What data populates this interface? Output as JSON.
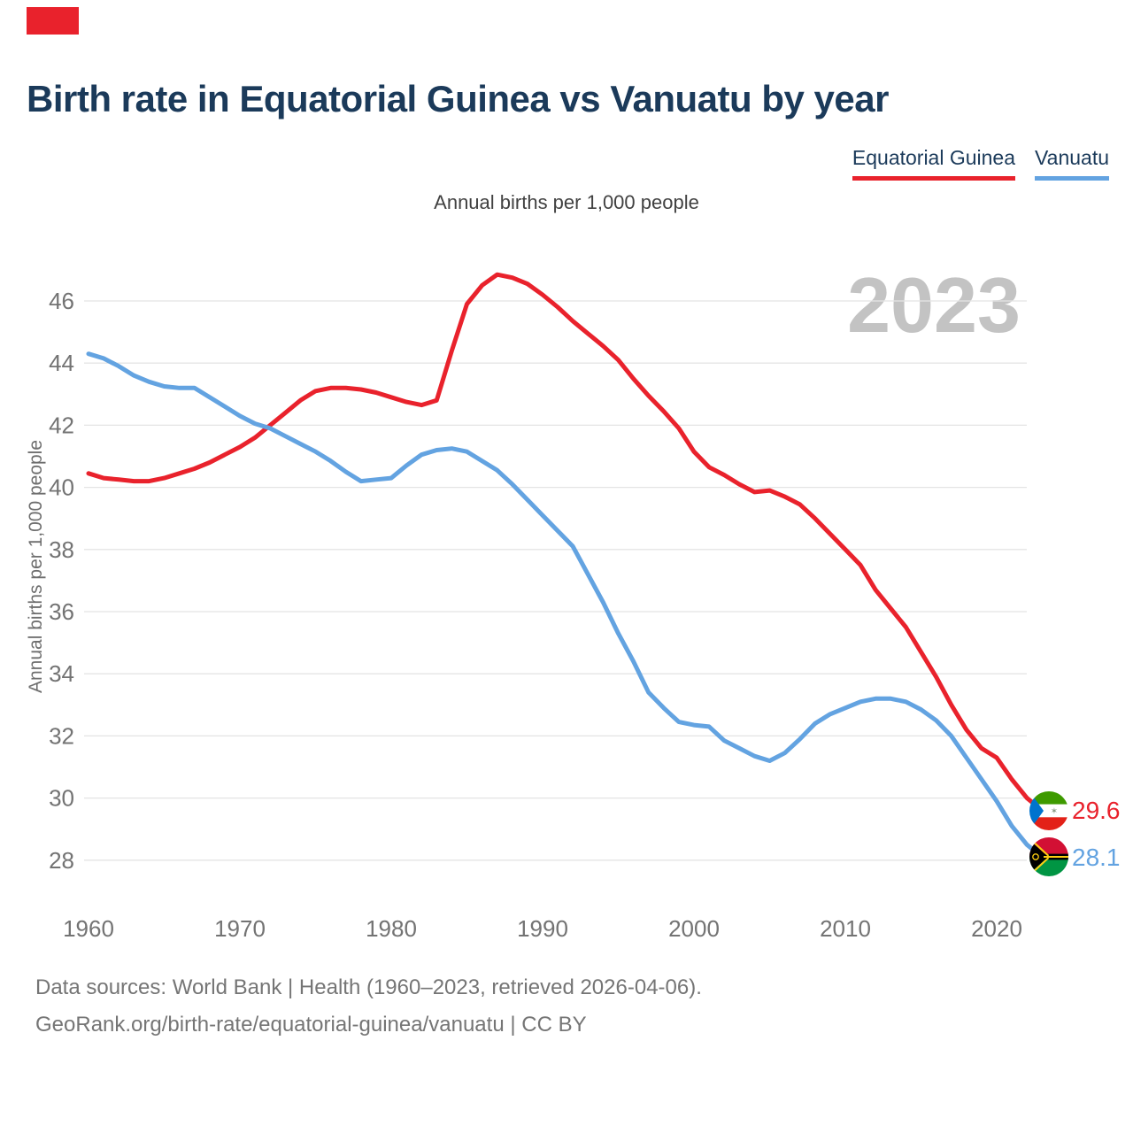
{
  "page": {
    "title": "Birth rate in Equatorial Guinea vs Vanuatu by year",
    "subtitle": "Annual births per 1,000 people",
    "watermark": "2023",
    "footer_line1": "Data sources: World Bank | Health (1960–2023, retrieved 2026-04-06).",
    "footer_line2": "GeoRank.org/birth-rate/equatorial-guinea/vanuatu | CC BY"
  },
  "colors": {
    "accent_red": "#e9222c",
    "line_red": "#e9222c",
    "line_blue": "#63a3e1",
    "title_navy": "#1b3a5a",
    "tick_gray": "#737373",
    "grid_gray": "#e4e4e4",
    "footer_gray": "#757575",
    "watermark_gray": "#c3c3c3"
  },
  "legend": [
    {
      "label": "Equatorial Guinea",
      "color": "#e9222c"
    },
    {
      "label": "Vanuatu",
      "color": "#63a3e1"
    }
  ],
  "end_labels": [
    {
      "series": "Equatorial Guinea",
      "value": "29.6",
      "color": "#e9222c",
      "flag": "equatorial-guinea-flag"
    },
    {
      "series": "Vanuatu",
      "value": "28.1",
      "color": "#63a3e1",
      "flag": "vanuatu-flag"
    }
  ],
  "chart_data": {
    "type": "line",
    "title": "Birth rate in Equatorial Guinea vs Vanuatu by year",
    "subtitle": "Annual births per 1,000 people",
    "xlabel": "",
    "ylabel": "Annual births per 1,000 people",
    "grid": "horizontal",
    "legend_position": "top-right",
    "ylim": [
      27,
      47.5
    ],
    "xticks": [
      1960,
      1970,
      1980,
      1990,
      2000,
      2010,
      2020
    ],
    "yticks": [
      28,
      30,
      32,
      34,
      36,
      38,
      40,
      42,
      44,
      46
    ],
    "x": [
      1960,
      1961,
      1962,
      1963,
      1964,
      1965,
      1966,
      1967,
      1968,
      1969,
      1970,
      1971,
      1972,
      1973,
      1974,
      1975,
      1976,
      1977,
      1978,
      1979,
      1980,
      1981,
      1982,
      1983,
      1984,
      1985,
      1986,
      1987,
      1988,
      1989,
      1990,
      1991,
      1992,
      1993,
      1994,
      1995,
      1996,
      1997,
      1998,
      1999,
      2000,
      2001,
      2002,
      2003,
      2004,
      2005,
      2006,
      2007,
      2008,
      2009,
      2010,
      2011,
      2012,
      2013,
      2014,
      2015,
      2016,
      2017,
      2018,
      2019,
      2020,
      2021,
      2022,
      2023
    ],
    "series": [
      {
        "name": "Equatorial Guinea",
        "color": "#e9222c",
        "values": [
          40.45,
          40.3,
          40.25,
          40.2,
          40.2,
          40.3,
          40.45,
          40.6,
          40.8,
          41.05,
          41.3,
          41.6,
          42.0,
          42.4,
          42.8,
          43.1,
          43.2,
          43.2,
          43.15,
          43.05,
          42.9,
          42.75,
          42.65,
          42.8,
          44.4,
          45.9,
          46.5,
          46.85,
          46.75,
          46.55,
          46.2,
          45.8,
          45.35,
          44.95,
          44.55,
          44.1,
          43.5,
          42.95,
          42.45,
          41.9,
          41.15,
          40.65,
          40.4,
          40.1,
          39.85,
          39.9,
          39.7,
          39.45,
          39.0,
          38.5,
          38.0,
          37.5,
          36.7,
          36.1,
          35.5,
          34.7,
          33.9,
          33.0,
          32.2,
          31.6,
          31.3,
          30.6,
          30.0,
          29.6
        ]
      },
      {
        "name": "Vanuatu",
        "color": "#63a3e1",
        "values": [
          44.3,
          44.15,
          43.9,
          43.6,
          43.4,
          43.25,
          43.2,
          43.2,
          42.9,
          42.6,
          42.3,
          42.05,
          41.9,
          41.65,
          41.4,
          41.15,
          40.85,
          40.5,
          40.2,
          40.25,
          40.3,
          40.7,
          41.05,
          41.2,
          41.25,
          41.15,
          40.85,
          40.55,
          40.1,
          39.6,
          39.1,
          38.6,
          38.1,
          37.2,
          36.3,
          35.3,
          34.4,
          33.4,
          32.9,
          32.45,
          32.35,
          32.3,
          31.85,
          31.6,
          31.35,
          31.2,
          31.45,
          31.9,
          32.4,
          32.7,
          32.9,
          33.1,
          33.2,
          33.2,
          33.1,
          32.85,
          32.5,
          32.0,
          31.3,
          30.6,
          29.9,
          29.1,
          28.5,
          28.1
        ]
      }
    ],
    "end_point_labels": {
      "Equatorial Guinea": 29.6,
      "Vanuatu": 28.1
    }
  }
}
